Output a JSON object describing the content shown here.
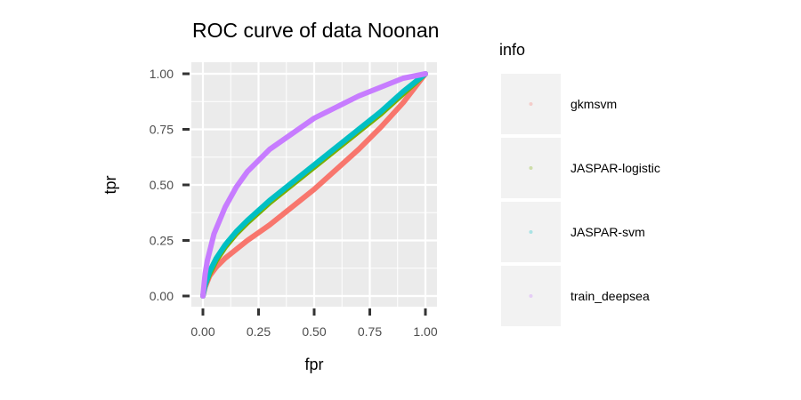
{
  "chart_data": {
    "type": "line",
    "title": "ROC curve of data Noonan",
    "xlabel": "fpr",
    "ylabel": "tpr",
    "xlim": [
      0,
      1
    ],
    "ylim": [
      0,
      1
    ],
    "x_ticks": [
      0,
      0.25,
      0.5,
      0.75,
      1.0
    ],
    "y_ticks": [
      0,
      0.25,
      0.5,
      0.75,
      1.0
    ],
    "x_tick_labels": [
      "0.00",
      "0.25",
      "0.50",
      "0.75",
      "1.00"
    ],
    "y_tick_labels": [
      "0.00",
      "0.25",
      "0.50",
      "0.75",
      "1.00"
    ],
    "grid": true,
    "legend": {
      "title": "info",
      "position": "right"
    },
    "series": [
      {
        "name": "gkmsvm",
        "color": "#F8766D",
        "x": [
          0,
          0.01,
          0.03,
          0.06,
          0.1,
          0.15,
          0.2,
          0.3,
          0.4,
          0.5,
          0.6,
          0.7,
          0.8,
          0.9,
          1.0
        ],
        "y": [
          0,
          0.04,
          0.09,
          0.13,
          0.17,
          0.21,
          0.25,
          0.32,
          0.4,
          0.48,
          0.57,
          0.66,
          0.76,
          0.87,
          1.0
        ]
      },
      {
        "name": "JASPAR-logistic",
        "color": "#7CAE00",
        "x": [
          0,
          0.01,
          0.03,
          0.06,
          0.1,
          0.15,
          0.2,
          0.3,
          0.4,
          0.5,
          0.6,
          0.7,
          0.8,
          0.9,
          1.0
        ],
        "y": [
          0,
          0.05,
          0.1,
          0.16,
          0.22,
          0.28,
          0.33,
          0.42,
          0.5,
          0.58,
          0.66,
          0.74,
          0.82,
          0.91,
          1.0
        ]
      },
      {
        "name": "JASPAR-svm",
        "color": "#00BFC4",
        "x": [
          0,
          0.01,
          0.03,
          0.06,
          0.1,
          0.15,
          0.2,
          0.3,
          0.4,
          0.5,
          0.6,
          0.7,
          0.8,
          0.9,
          1.0
        ],
        "y": [
          0,
          0.05,
          0.11,
          0.17,
          0.23,
          0.29,
          0.34,
          0.43,
          0.51,
          0.59,
          0.67,
          0.75,
          0.83,
          0.92,
          1.0
        ]
      },
      {
        "name": "train_deepsea",
        "color": "#C77CFF",
        "x": [
          0,
          0.01,
          0.02,
          0.05,
          0.1,
          0.15,
          0.2,
          0.3,
          0.4,
          0.5,
          0.6,
          0.7,
          0.8,
          0.9,
          1.0
        ],
        "y": [
          0,
          0.1,
          0.16,
          0.28,
          0.4,
          0.49,
          0.56,
          0.66,
          0.73,
          0.8,
          0.85,
          0.9,
          0.94,
          0.98,
          1.0
        ]
      }
    ]
  }
}
